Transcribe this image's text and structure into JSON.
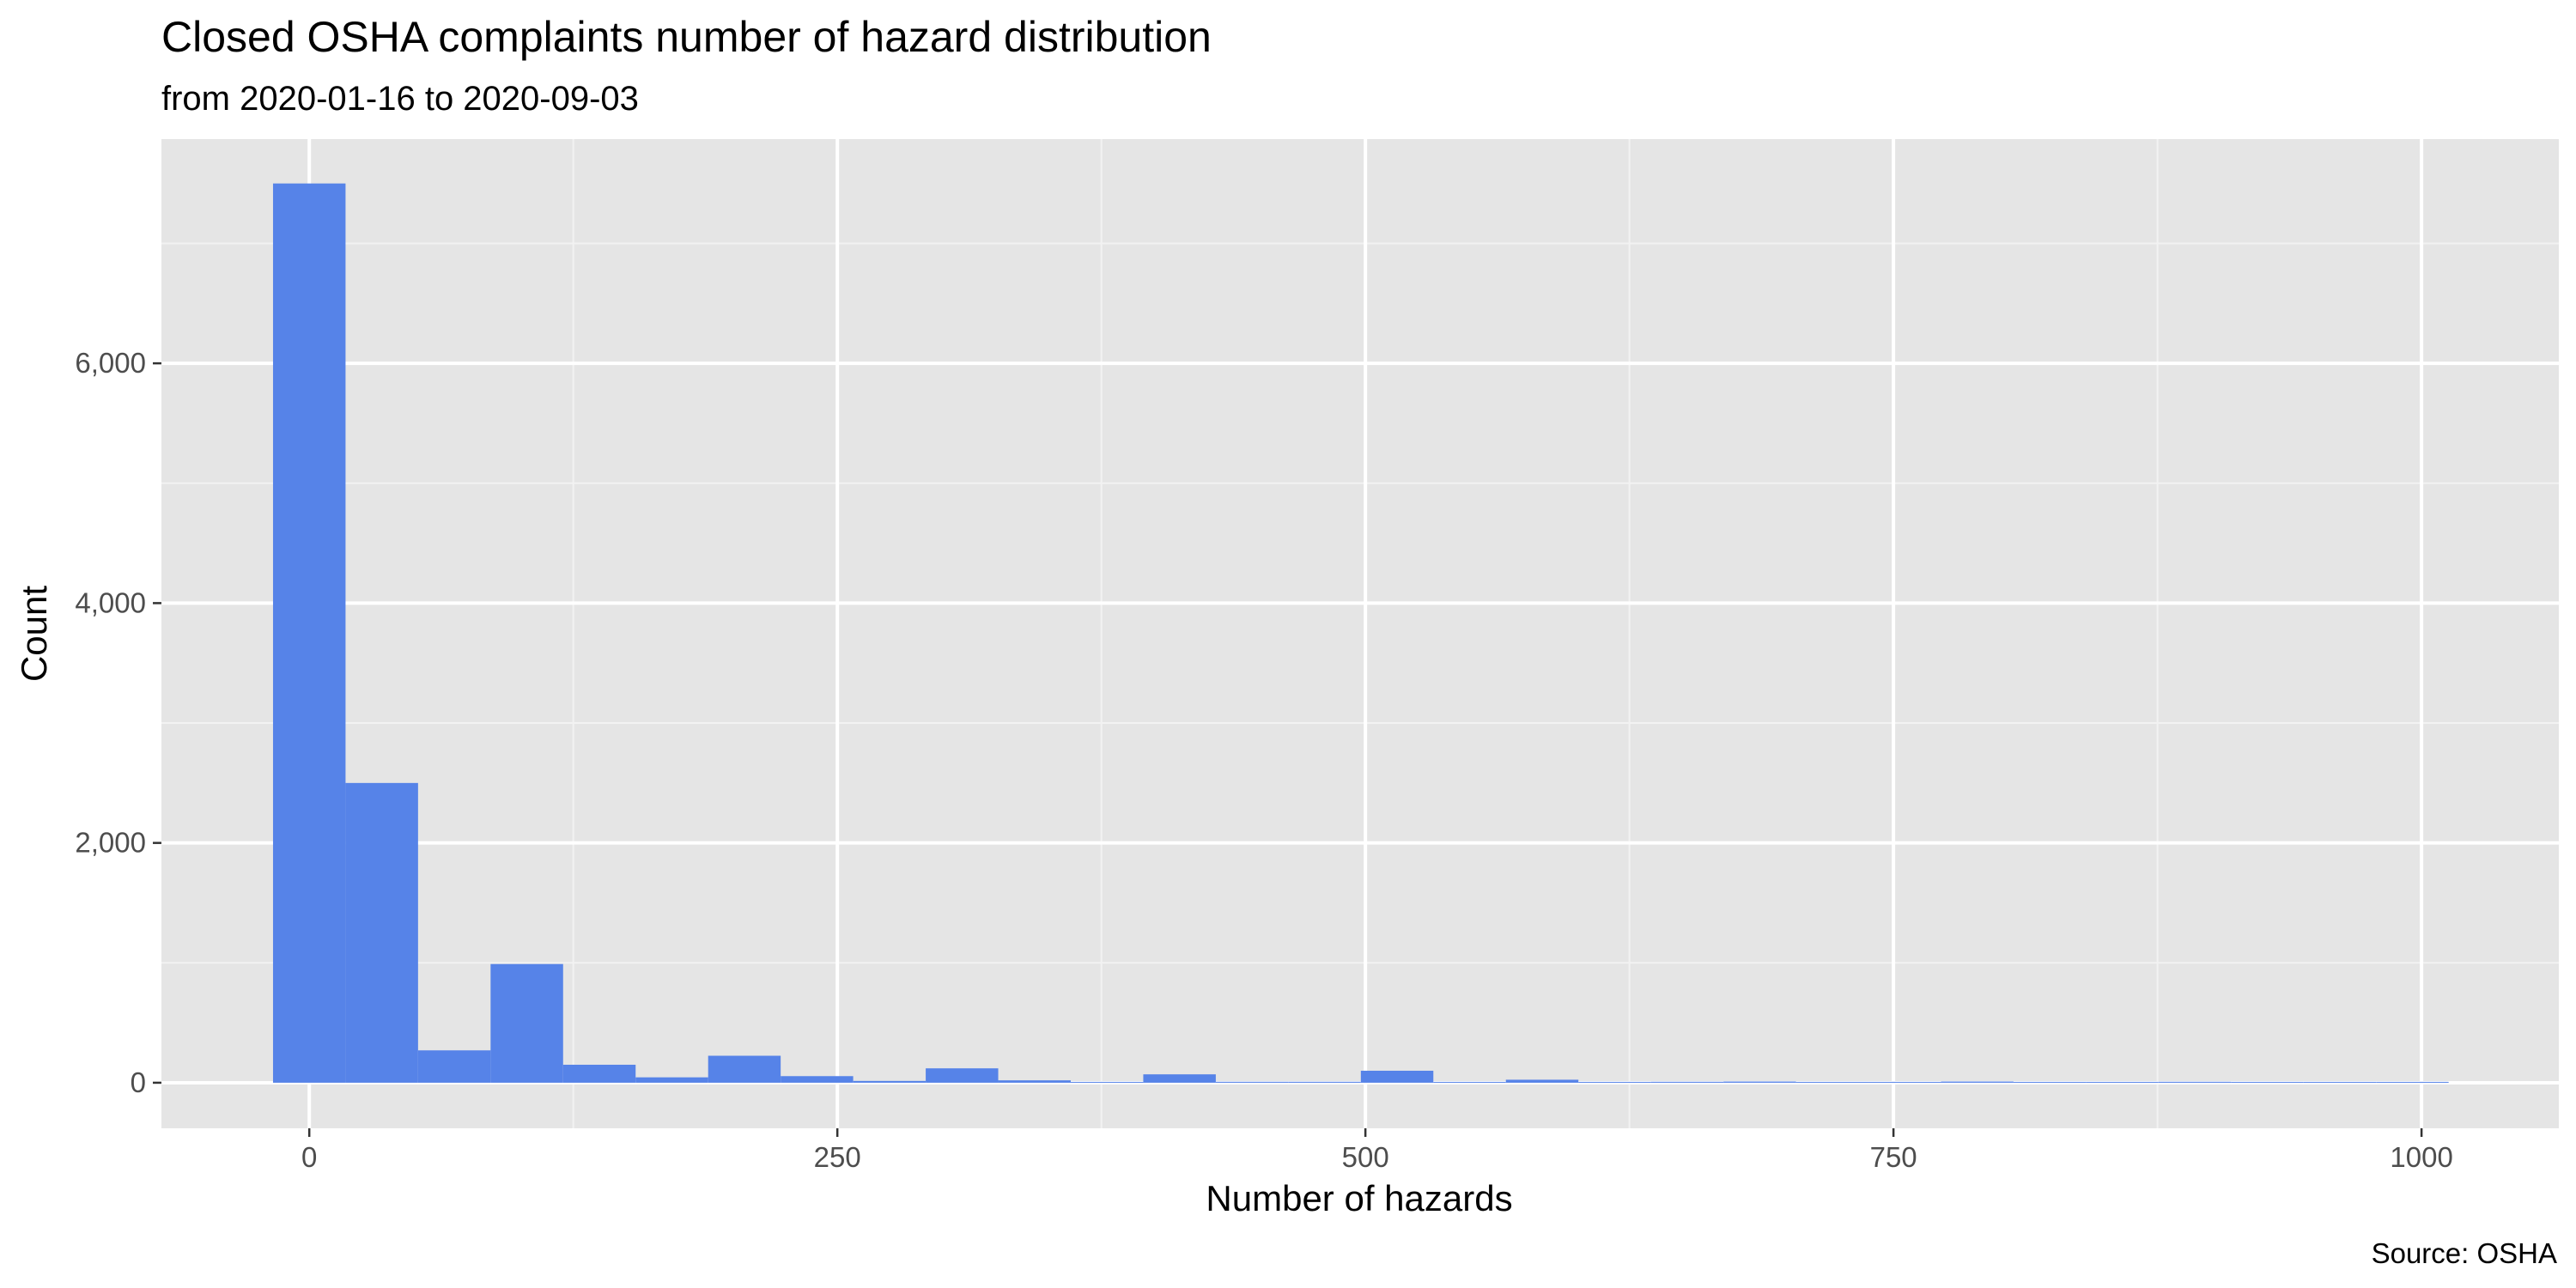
{
  "chart_data": {
    "type": "bar",
    "title": "Closed OSHA complaints number of hazard distribution",
    "subtitle": "from 2020-01-16 to 2020-09-03",
    "xlabel": "Number of hazards",
    "ylabel": "Count",
    "caption": "Source: OSHA",
    "bar_color": "#5683e8",
    "panel_color": "#e5e5e5",
    "grid": true,
    "xlim": [
      -70,
      1065
    ],
    "ylim": [
      -380,
      7870
    ],
    "x_ticks": [
      0,
      250,
      500,
      750,
      1000
    ],
    "x_tick_labels": [
      "0",
      "250",
      "500",
      "750",
      "1000"
    ],
    "y_ticks": [
      0,
      2000,
      4000,
      6000
    ],
    "y_tick_labels": [
      "0",
      "2,000",
      "4,000",
      "6,000"
    ],
    "bin_width": 34.33,
    "bins": [
      {
        "x": 0,
        "count": 7500
      },
      {
        "x": 34.33,
        "count": 2500
      },
      {
        "x": 68.67,
        "count": 270
      },
      {
        "x": 103,
        "count": 990
      },
      {
        "x": 137.33,
        "count": 150
      },
      {
        "x": 171.67,
        "count": 45
      },
      {
        "x": 206,
        "count": 225
      },
      {
        "x": 240.33,
        "count": 55
      },
      {
        "x": 274.67,
        "count": 15
      },
      {
        "x": 309,
        "count": 120
      },
      {
        "x": 343.33,
        "count": 20
      },
      {
        "x": 377.67,
        "count": 5
      },
      {
        "x": 412,
        "count": 70
      },
      {
        "x": 446.33,
        "count": 8
      },
      {
        "x": 480.67,
        "count": 8
      },
      {
        "x": 515,
        "count": 100
      },
      {
        "x": 549.33,
        "count": 5
      },
      {
        "x": 583.67,
        "count": 25
      },
      {
        "x": 618,
        "count": 3
      },
      {
        "x": 652.33,
        "count": 8
      },
      {
        "x": 686.67,
        "count": 10
      },
      {
        "x": 721,
        "count": 3
      },
      {
        "x": 755.33,
        "count": 5
      },
      {
        "x": 789.67,
        "count": 10
      },
      {
        "x": 824,
        "count": 2
      },
      {
        "x": 858.33,
        "count": 5
      },
      {
        "x": 892.67,
        "count": 8
      },
      {
        "x": 927,
        "count": 2
      },
      {
        "x": 961.33,
        "count": 5
      },
      {
        "x": 995.67,
        "count": 5
      }
    ]
  }
}
